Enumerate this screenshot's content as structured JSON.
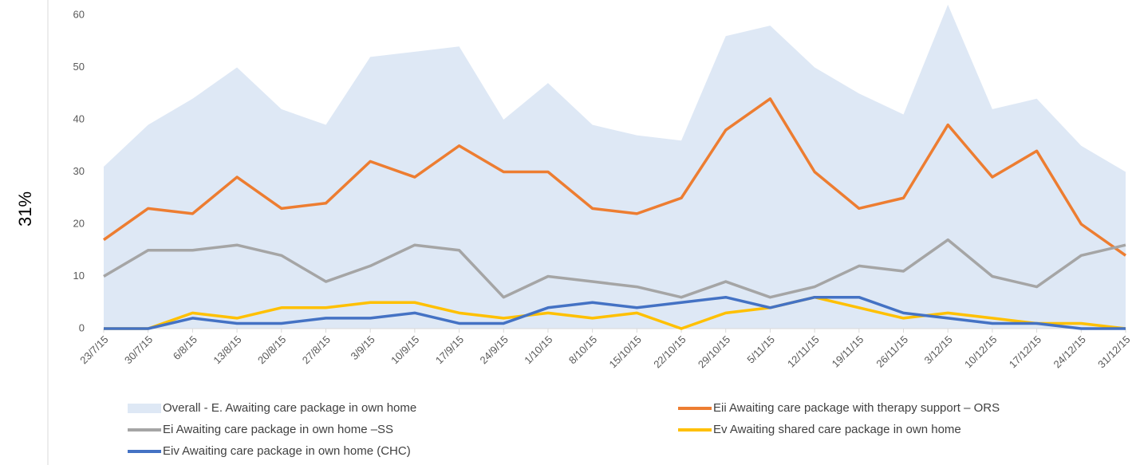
{
  "chart_data": {
    "type": "line",
    "annotation": "31%",
    "categories": [
      "23/7/15",
      "30/7/15",
      "6/8/15",
      "13/8/15",
      "20/8/15",
      "27/8/15",
      "3/9/15",
      "10/9/15",
      "17/9/15",
      "24/9/15",
      "1/10/15",
      "8/10/15",
      "15/10/15",
      "22/10/15",
      "29/10/15",
      "5/11/15",
      "12/11/15",
      "19/11/15",
      "26/11/15",
      "3/12/15",
      "10/12/15",
      "17/12/15",
      "24/12/15",
      "31/12/15"
    ],
    "ylim": [
      0,
      60
    ],
    "yticks": [
      0,
      10,
      20,
      30,
      40,
      50,
      60
    ],
    "grid": false,
    "series": [
      {
        "name": "Overall - E. Awaiting care package in own home",
        "style": "area",
        "color": "#dee8f5",
        "values": [
          31,
          39,
          44,
          50,
          42,
          39,
          52,
          53,
          54,
          40,
          47,
          39,
          37,
          36,
          56,
          58,
          50,
          45,
          41,
          62,
          42,
          44,
          35,
          30
        ]
      },
      {
        "name": "Eii  Awaiting care package with therapy support – ORS",
        "style": "line",
        "color": "#ed7d31",
        "values": [
          17,
          23,
          22,
          29,
          23,
          24,
          32,
          29,
          35,
          30,
          30,
          23,
          22,
          25,
          38,
          44,
          30,
          23,
          25,
          39,
          29,
          34,
          20,
          14
        ]
      },
      {
        "name": "Ei  Awaiting care package in own home –SS",
        "style": "line",
        "color": "#a5a5a5",
        "values": [
          10,
          15,
          15,
          16,
          14,
          9,
          12,
          16,
          15,
          6,
          10,
          9,
          8,
          6,
          9,
          6,
          8,
          12,
          11,
          17,
          10,
          8,
          14,
          16
        ]
      },
      {
        "name": "Ev  Awaiting shared care package in own home",
        "style": "line",
        "color": "#ffc000",
        "values": [
          0,
          0,
          3,
          2,
          4,
          4,
          5,
          5,
          3,
          2,
          3,
          2,
          3,
          0,
          3,
          4,
          6,
          4,
          2,
          3,
          2,
          1,
          1,
          0
        ]
      },
      {
        "name": "Eiv  Awaiting care package in own home (CHC)",
        "style": "line",
        "color": "#4472c4",
        "values": [
          0,
          0,
          2,
          1,
          1,
          2,
          2,
          3,
          1,
          1,
          4,
          5,
          4,
          5,
          6,
          4,
          6,
          6,
          3,
          2,
          1,
          1,
          0,
          0
        ]
      }
    ]
  }
}
